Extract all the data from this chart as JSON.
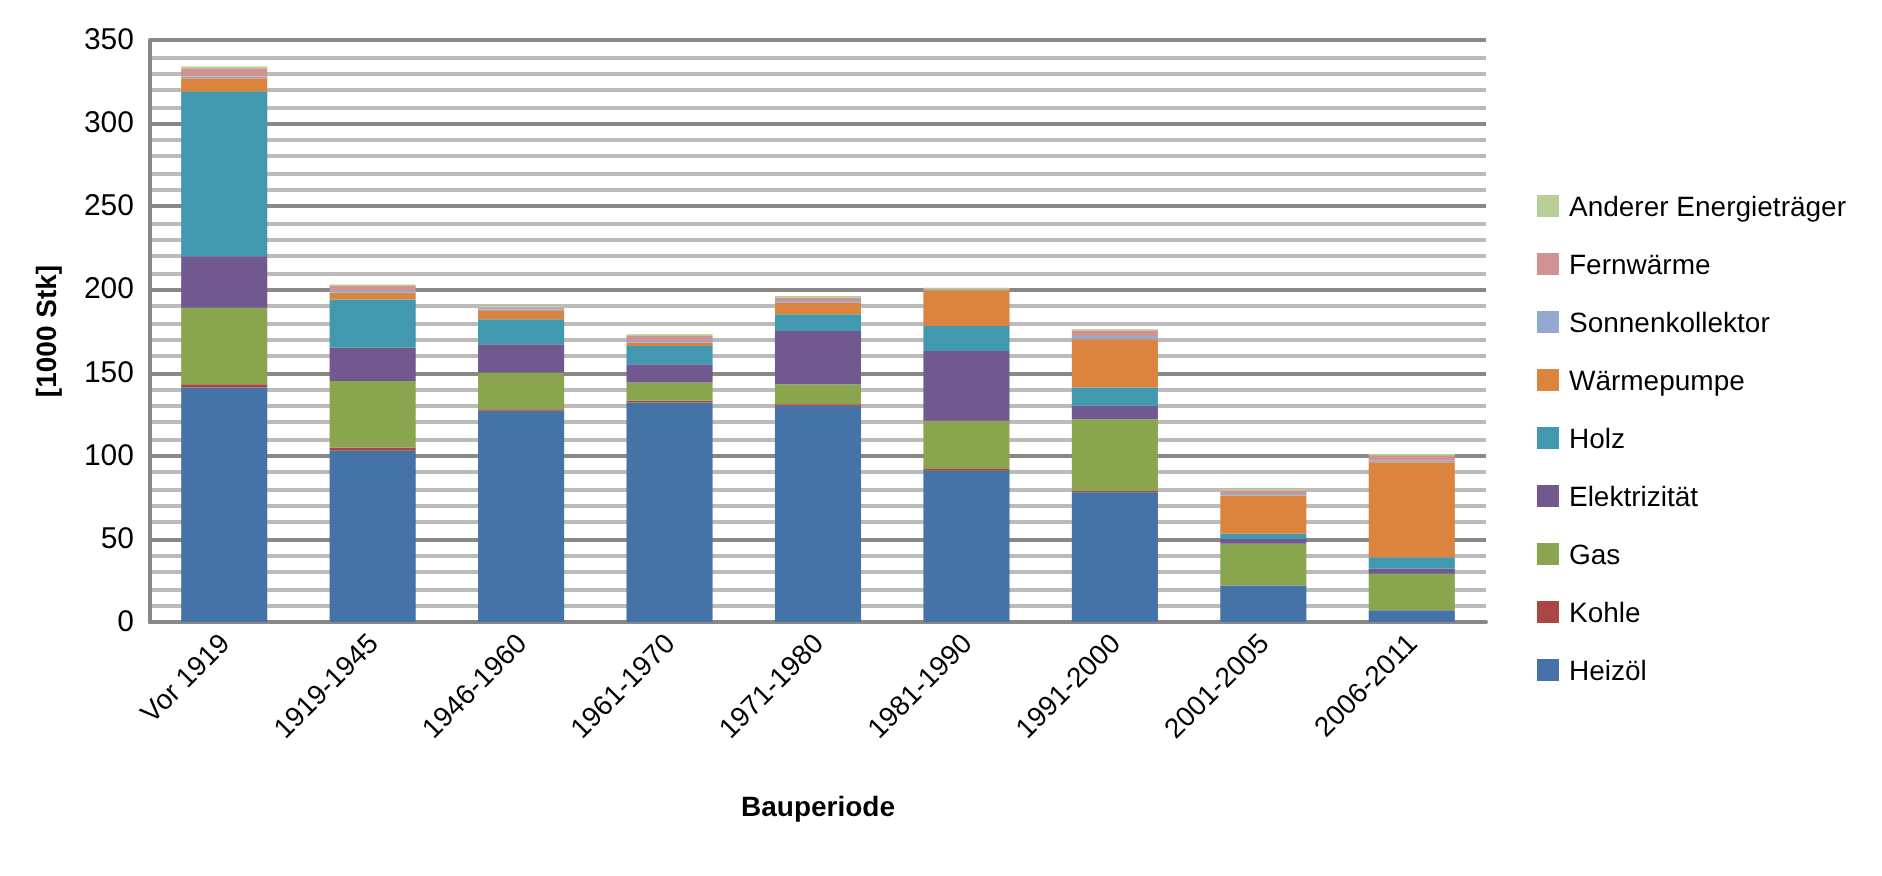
{
  "chart_data": {
    "type": "bar",
    "stacked": true,
    "xlabel": "Bauperiode",
    "ylabel": "[1000 Stk]",
    "categories": [
      "Vor 1919",
      "1919-1945",
      "1946-1960",
      "1961-1970",
      "1971-1980",
      "1981-1990",
      "1991-2000",
      "2001-2005",
      "2006-2011"
    ],
    "series": [
      {
        "name": "Heizöl",
        "color": "#4572a7",
        "values": [
          141,
          103,
          127,
          132,
          130,
          91,
          78,
          22,
          7
        ]
      },
      {
        "name": "Kohle",
        "color": "#aa4643",
        "values": [
          2,
          2,
          1,
          1,
          1,
          1,
          1,
          0,
          0
        ]
      },
      {
        "name": "Gas",
        "color": "#89a54e",
        "values": [
          46,
          40,
          22,
          11,
          12,
          29,
          43,
          25,
          22
        ]
      },
      {
        "name": "Elektrizität",
        "color": "#71588f",
        "values": [
          31,
          20,
          17,
          11,
          32,
          42,
          8,
          3,
          3
        ]
      },
      {
        "name": "Holz",
        "color": "#4198af",
        "values": [
          99,
          29,
          15,
          11,
          10,
          15,
          11,
          3,
          7
        ]
      },
      {
        "name": "Wärmepumpe",
        "color": "#db843d",
        "values": [
          8,
          4,
          5,
          2,
          7,
          21,
          29,
          23,
          57
        ]
      },
      {
        "name": "Sonnenkollektor",
        "color": "#93a9cf",
        "values": [
          1,
          1,
          1,
          1,
          1,
          0,
          2,
          1,
          1
        ]
      },
      {
        "name": "Fernwärme",
        "color": "#d19392",
        "values": [
          5,
          3,
          1,
          3,
          2,
          1,
          3,
          2,
          3
        ]
      },
      {
        "name": "Anderer Energieträger",
        "color": "#b9cd96",
        "values": [
          1,
          1,
          1,
          1,
          1,
          1,
          1,
          1,
          1
        ]
      }
    ],
    "ylim": [
      0,
      350
    ],
    "yticks": [
      0,
      50,
      100,
      150,
      200,
      250,
      300,
      350
    ],
    "grid": "y",
    "legend": "right"
  }
}
